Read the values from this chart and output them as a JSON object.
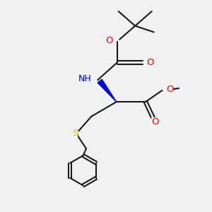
{
  "bg_color": "#f0f1f2",
  "bond_color": "#1a1a1a",
  "oxygen_color": "#ff0000",
  "nitrogen_color": "#0000dd",
  "sulfur_color": "#cccc00",
  "line_width": 1.5,
  "font_size": 8.5,
  "figsize": [
    3.0,
    3.0
  ],
  "dpi": 100,
  "xlim": [
    0,
    10
  ],
  "ylim": [
    0,
    10
  ]
}
